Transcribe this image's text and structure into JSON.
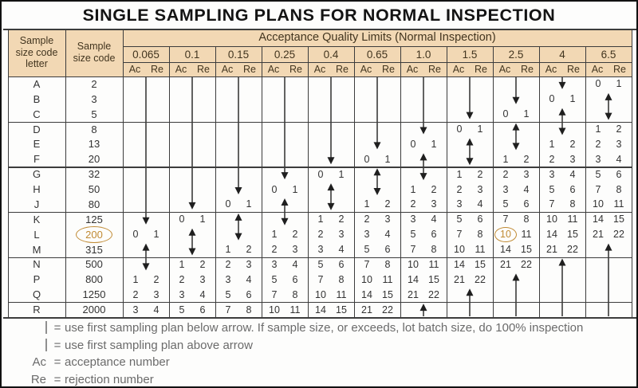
{
  "title": "SINGLE SAMPLING PLANS FOR NORMAL INSPECTION",
  "header": {
    "col1": "Sample size code letter",
    "col2": "Sample size code",
    "aql_title": "Acceptance Quality Limits (Normal Inspection)",
    "ac_label": "Ac",
    "re_label": "Re"
  },
  "rows": [
    {
      "letter": "A",
      "size": "2"
    },
    {
      "letter": "B",
      "size": "3"
    },
    {
      "letter": "C",
      "size": "5"
    },
    {
      "letter": "D",
      "size": "8"
    },
    {
      "letter": "E",
      "size": "13"
    },
    {
      "letter": "F",
      "size": "20"
    },
    {
      "letter": "G",
      "size": "32"
    },
    {
      "letter": "H",
      "size": "50"
    },
    {
      "letter": "J",
      "size": "80"
    },
    {
      "letter": "K",
      "size": "125"
    },
    {
      "letter": "L",
      "size": "200"
    },
    {
      "letter": "M",
      "size": "315"
    },
    {
      "letter": "N",
      "size": "500"
    },
    {
      "letter": "P",
      "size": "800"
    },
    {
      "letter": "Q",
      "size": "1250"
    },
    {
      "letter": "R",
      "size": "2000"
    }
  ],
  "row_group_ends": [
    2,
    5,
    8,
    11,
    14
  ],
  "columns": [
    {
      "aql": "0.065",
      "arrows": [
        {
          "type": "down",
          "from": 0,
          "to": 9
        },
        {
          "type": "updown",
          "from": 11,
          "to": 12
        }
      ],
      "plans": [
        {
          "row": 10,
          "ac": "0",
          "re": "1"
        },
        {
          "row": 13,
          "ac": "1",
          "re": "2"
        },
        {
          "row": 14,
          "ac": "2",
          "re": "3"
        },
        {
          "row": 15,
          "ac": "3",
          "re": "4"
        }
      ]
    },
    {
      "aql": "0.1",
      "arrows": [
        {
          "type": "down",
          "from": 0,
          "to": 8
        },
        {
          "type": "updown",
          "from": 10,
          "to": 11
        }
      ],
      "plans": [
        {
          "row": 9,
          "ac": "0",
          "re": "1"
        },
        {
          "row": 12,
          "ac": "1",
          "re": "2"
        },
        {
          "row": 13,
          "ac": "2",
          "re": "3"
        },
        {
          "row": 14,
          "ac": "3",
          "re": "4"
        },
        {
          "row": 15,
          "ac": "5",
          "re": "6"
        }
      ]
    },
    {
      "aql": "0.15",
      "arrows": [
        {
          "type": "down",
          "from": 0,
          "to": 7
        },
        {
          "type": "updown",
          "from": 9,
          "to": 10
        }
      ],
      "plans": [
        {
          "row": 8,
          "ac": "0",
          "re": "1"
        },
        {
          "row": 11,
          "ac": "1",
          "re": "2"
        },
        {
          "row": 12,
          "ac": "2",
          "re": "3"
        },
        {
          "row": 13,
          "ac": "3",
          "re": "4"
        },
        {
          "row": 14,
          "ac": "5",
          "re": "6"
        },
        {
          "row": 15,
          "ac": "7",
          "re": "8"
        }
      ]
    },
    {
      "aql": "0.25",
      "arrows": [
        {
          "type": "down",
          "from": 0,
          "to": 6
        },
        {
          "type": "updown",
          "from": 8,
          "to": 9
        }
      ],
      "plans": [
        {
          "row": 7,
          "ac": "0",
          "re": "1"
        },
        {
          "row": 10,
          "ac": "1",
          "re": "2"
        },
        {
          "row": 11,
          "ac": "2",
          "re": "3"
        },
        {
          "row": 12,
          "ac": "3",
          "re": "4"
        },
        {
          "row": 13,
          "ac": "5",
          "re": "6"
        },
        {
          "row": 14,
          "ac": "7",
          "re": "8"
        },
        {
          "row": 15,
          "ac": "10",
          "re": "11"
        }
      ]
    },
    {
      "aql": "0.4",
      "arrows": [
        {
          "type": "down",
          "from": 0,
          "to": 5
        },
        {
          "type": "updown",
          "from": 7,
          "to": 8
        }
      ],
      "plans": [
        {
          "row": 6,
          "ac": "0",
          "re": "1"
        },
        {
          "row": 9,
          "ac": "1",
          "re": "2"
        },
        {
          "row": 10,
          "ac": "2",
          "re": "3"
        },
        {
          "row": 11,
          "ac": "3",
          "re": "4"
        },
        {
          "row": 12,
          "ac": "5",
          "re": "6"
        },
        {
          "row": 13,
          "ac": "7",
          "re": "8"
        },
        {
          "row": 14,
          "ac": "10",
          "re": "11"
        },
        {
          "row": 15,
          "ac": "14",
          "re": "15"
        }
      ]
    },
    {
      "aql": "0.65",
      "arrows": [
        {
          "type": "down",
          "from": 0,
          "to": 4
        },
        {
          "type": "updown",
          "from": 6,
          "to": 7
        }
      ],
      "plans": [
        {
          "row": 5,
          "ac": "0",
          "re": "1"
        },
        {
          "row": 8,
          "ac": "1",
          "re": "2"
        },
        {
          "row": 9,
          "ac": "2",
          "re": "3"
        },
        {
          "row": 10,
          "ac": "3",
          "re": "4"
        },
        {
          "row": 11,
          "ac": "5",
          "re": "6"
        },
        {
          "row": 12,
          "ac": "7",
          "re": "8"
        },
        {
          "row": 13,
          "ac": "10",
          "re": "11"
        },
        {
          "row": 14,
          "ac": "14",
          "re": "15"
        },
        {
          "row": 15,
          "ac": "21",
          "re": "22"
        }
      ]
    },
    {
      "aql": "1.0",
      "arrows": [
        {
          "type": "down",
          "from": 0,
          "to": 3
        },
        {
          "type": "updown",
          "from": 5,
          "to": 6
        },
        {
          "type": "up",
          "from": 15,
          "to": 15
        }
      ],
      "plans": [
        {
          "row": 4,
          "ac": "0",
          "re": "1"
        },
        {
          "row": 7,
          "ac": "1",
          "re": "2"
        },
        {
          "row": 8,
          "ac": "2",
          "re": "3"
        },
        {
          "row": 9,
          "ac": "3",
          "re": "4"
        },
        {
          "row": 10,
          "ac": "5",
          "re": "6"
        },
        {
          "row": 11,
          "ac": "7",
          "re": "8"
        },
        {
          "row": 12,
          "ac": "10",
          "re": "11"
        },
        {
          "row": 13,
          "ac": "14",
          "re": "15"
        },
        {
          "row": 14,
          "ac": "21",
          "re": "22"
        }
      ]
    },
    {
      "aql": "1.5",
      "arrows": [
        {
          "type": "down",
          "from": 0,
          "to": 2
        },
        {
          "type": "updown",
          "from": 4,
          "to": 5
        },
        {
          "type": "up",
          "from": 14,
          "to": 15
        }
      ],
      "plans": [
        {
          "row": 3,
          "ac": "0",
          "re": "1"
        },
        {
          "row": 6,
          "ac": "1",
          "re": "2"
        },
        {
          "row": 7,
          "ac": "2",
          "re": "3"
        },
        {
          "row": 8,
          "ac": "3",
          "re": "4"
        },
        {
          "row": 9,
          "ac": "5",
          "re": "6"
        },
        {
          "row": 10,
          "ac": "7",
          "re": "8"
        },
        {
          "row": 11,
          "ac": "10",
          "re": "11"
        },
        {
          "row": 12,
          "ac": "14",
          "re": "15"
        },
        {
          "row": 13,
          "ac": "21",
          "re": "22"
        }
      ]
    },
    {
      "aql": "2.5",
      "arrows": [
        {
          "type": "down",
          "from": 0,
          "to": 1
        },
        {
          "type": "updown",
          "from": 3,
          "to": 4
        },
        {
          "type": "up",
          "from": 13,
          "to": 15
        }
      ],
      "plans": [
        {
          "row": 2,
          "ac": "0",
          "re": "1"
        },
        {
          "row": 5,
          "ac": "1",
          "re": "2"
        },
        {
          "row": 6,
          "ac": "2",
          "re": "3"
        },
        {
          "row": 7,
          "ac": "3",
          "re": "4"
        },
        {
          "row": 8,
          "ac": "5",
          "re": "6"
        },
        {
          "row": 9,
          "ac": "7",
          "re": "8"
        },
        {
          "row": 10,
          "ac": "10",
          "re": "11"
        },
        {
          "row": 11,
          "ac": "14",
          "re": "15"
        },
        {
          "row": 12,
          "ac": "21",
          "re": "22"
        }
      ]
    },
    {
      "aql": "4",
      "arrows": [
        {
          "type": "down",
          "from": 0,
          "to": 0
        },
        {
          "type": "updown",
          "from": 2,
          "to": 3
        },
        {
          "type": "up",
          "from": 12,
          "to": 15
        }
      ],
      "plans": [
        {
          "row": 1,
          "ac": "0",
          "re": "1"
        },
        {
          "row": 4,
          "ac": "1",
          "re": "2"
        },
        {
          "row": 5,
          "ac": "2",
          "re": "3"
        },
        {
          "row": 6,
          "ac": "3",
          "re": "4"
        },
        {
          "row": 7,
          "ac": "5",
          "re": "6"
        },
        {
          "row": 8,
          "ac": "7",
          "re": "8"
        },
        {
          "row": 9,
          "ac": "10",
          "re": "11"
        },
        {
          "row": 10,
          "ac": "14",
          "re": "15"
        },
        {
          "row": 11,
          "ac": "21",
          "re": "22"
        }
      ]
    },
    {
      "aql": "6.5",
      "arrows": [
        {
          "type": "updown",
          "from": 1,
          "to": 2
        },
        {
          "type": "up",
          "from": 11,
          "to": 15
        }
      ],
      "plans": [
        {
          "row": 0,
          "ac": "0",
          "re": "1"
        },
        {
          "row": 3,
          "ac": "1",
          "re": "2"
        },
        {
          "row": 4,
          "ac": "2",
          "re": "3"
        },
        {
          "row": 5,
          "ac": "3",
          "re": "4"
        },
        {
          "row": 6,
          "ac": "5",
          "re": "6"
        },
        {
          "row": 7,
          "ac": "7",
          "re": "8"
        },
        {
          "row": 8,
          "ac": "10",
          "re": "11"
        },
        {
          "row": 9,
          "ac": "14",
          "re": "15"
        },
        {
          "row": 10,
          "ac": "21",
          "re": "22"
        }
      ]
    }
  ],
  "highlights": {
    "sample_size_row": 10,
    "sample_size_value": "200",
    "accept_col": 8,
    "accept_row": 10,
    "accept_value": "10"
  },
  "legend": {
    "equals": "=",
    "items": [
      {
        "symbol": "down-arrow",
        "text": "use first sampling plan below arrow. If sample size, or exceeds, lot batch size, do 100% inspection"
      },
      {
        "symbol": "up-arrow",
        "text": "use first sampling plan above arrow"
      },
      {
        "symbol": "Ac",
        "text": "acceptance number"
      },
      {
        "symbol": "Re",
        "text": "rejection number"
      }
    ]
  },
  "colors": {
    "header_tan": "#f2d8b4",
    "accent_orange": "#c08a33",
    "grid_line": "#3c3c3c",
    "arrow_black": "#1f1f1f",
    "legend_gray": "#6b6b6b"
  }
}
